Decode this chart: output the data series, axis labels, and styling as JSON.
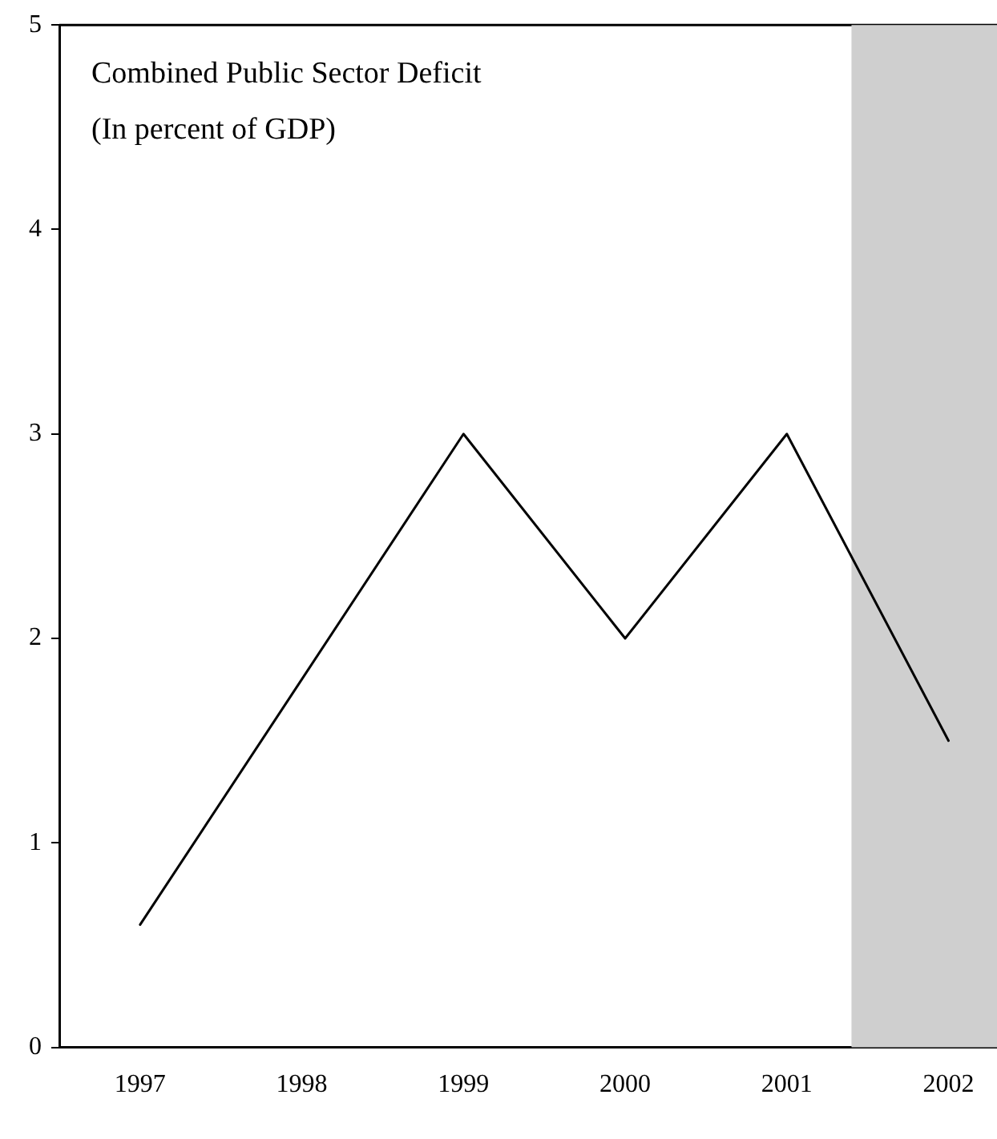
{
  "chart_data": {
    "type": "line",
    "title": "Combined Public Sector Deficit",
    "subtitle": "(In percent of GDP)",
    "x": [
      1997,
      1998,
      1999,
      2000,
      2001,
      2002
    ],
    "series": [
      {
        "color": "#000000",
        "values": [
          0.6,
          1.8,
          3.0,
          2.0,
          3.0,
          1.5
        ]
      }
    ],
    "xlim": [
      1996.5,
      2002.3
    ],
    "xticks": [
      1997,
      1998,
      1999,
      2000,
      2001,
      2002
    ],
    "ylim": [
      0,
      5
    ],
    "yticks": [
      0,
      1,
      2,
      3,
      4,
      5
    ],
    "bands": [
      {
        "axis": "x",
        "from": 2001.4,
        "to": 2002.3,
        "color": "#cfcfcf"
      }
    ],
    "grid": false,
    "legend": false,
    "marker": "none",
    "line_style": "solid"
  }
}
